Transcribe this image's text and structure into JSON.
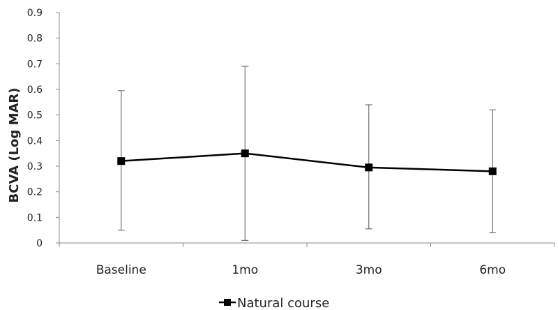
{
  "chart_data": {
    "type": "line",
    "title": "",
    "xlabel": "",
    "ylabel": "BCVA (Log MAR)",
    "ylim": [
      0,
      0.9
    ],
    "yticks": [
      "0",
      "0.1",
      "0.2",
      "0.3",
      "0.4",
      "0.5",
      "0.6",
      "0.7",
      "0.8",
      "0.9"
    ],
    "categories": [
      "Baseline",
      "1mo",
      "3mo",
      "6mo"
    ],
    "grid": false,
    "legend_position": "bottom",
    "series": [
      {
        "name": "Natural course",
        "values": [
          0.32,
          0.35,
          0.295,
          0.28
        ],
        "error_low": [
          0.05,
          0.01,
          0.055,
          0.04
        ],
        "error_high": [
          0.595,
          0.69,
          0.54,
          0.52
        ],
        "color": "#000000",
        "marker": "square"
      }
    ]
  }
}
